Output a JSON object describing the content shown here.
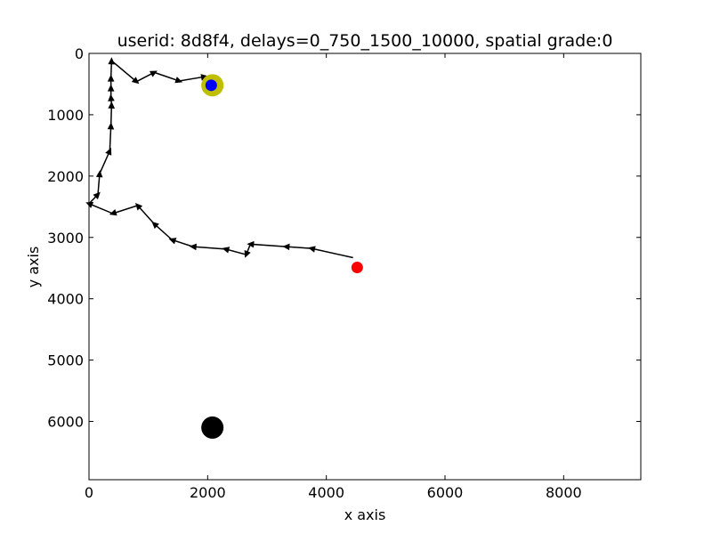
{
  "chart_data": {
    "type": "scatter",
    "title": "userid: 8d8f4, delays=0_750_1500_10000, spatial grade:0",
    "xlabel": "x axis",
    "ylabel": "y axis",
    "xlim": [
      0,
      9300
    ],
    "ylim": [
      0,
      6950
    ],
    "y_inverted": true,
    "xticks": [
      0,
      2000,
      4000,
      6000,
      8000
    ],
    "yticks": [
      0,
      1000,
      2000,
      3000,
      4000,
      5000,
      6000
    ],
    "grid": false,
    "colors": {
      "path": "#000000",
      "start_marker": "#ff0000",
      "target_ring": "#bfbf00",
      "end_marker": "#0000ff",
      "reference_marker": "#000000"
    },
    "path": {
      "x": [
        4450,
        3750,
        3320,
        2720,
        2650,
        2300,
        1750,
        1400,
        1100,
        820,
        400,
        0,
        150,
        180,
        350,
        370,
        380,
        370,
        370,
        370,
        380,
        800,
        1100,
        1520,
        1950
      ],
      "y": [
        3330,
        3180,
        3150,
        3110,
        3280,
        3190,
        3150,
        3040,
        2780,
        2480,
        2610,
        2450,
        2300,
        1960,
        1590,
        1180,
        840,
        720,
        560,
        400,
        120,
        460,
        310,
        450,
        380
      ]
    },
    "markers": [
      {
        "name": "start",
        "x": 4520,
        "y": 3490,
        "color": "#ff0000",
        "size": "small"
      },
      {
        "name": "target",
        "x": 2080,
        "y": 520,
        "color": "#bfbf00",
        "size": "large"
      },
      {
        "name": "end",
        "x": 2060,
        "y": 520,
        "color": "#0000ff",
        "size": "small"
      },
      {
        "name": "reference",
        "x": 2080,
        "y": 6100,
        "color": "#000000",
        "size": "large"
      }
    ]
  }
}
